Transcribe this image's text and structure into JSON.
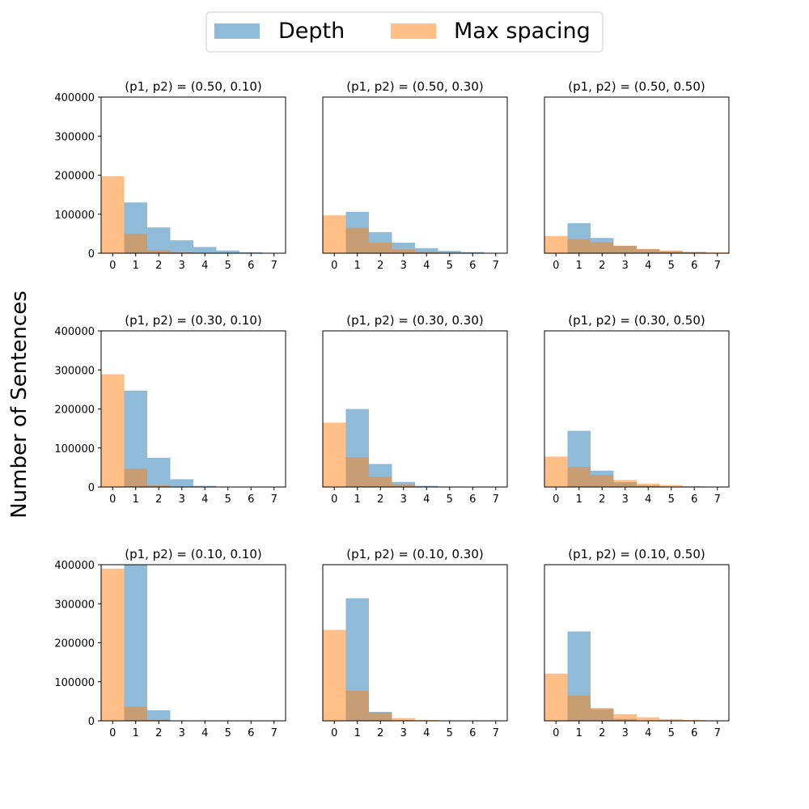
{
  "chart_data": {
    "type": "bar",
    "layout_grid": "3x3",
    "ylabel": "Number of Sentences",
    "ylim": [
      0,
      400000
    ],
    "yticks": [
      0,
      100000,
      200000,
      300000,
      400000
    ],
    "categories": [
      "0",
      "1",
      "2",
      "3",
      "4",
      "5",
      "6",
      "7"
    ],
    "legend": {
      "placement": "top-center",
      "entries": [
        {
          "name": "Depth",
          "color": "#1f77b4",
          "alpha": 0.5
        },
        {
          "name": "Max spacing",
          "color": "#ff7f0e",
          "alpha": 0.5
        }
      ]
    },
    "panels": [
      {
        "title": "(p1, p2) = (0.50, 0.10)",
        "series": [
          {
            "name": "Depth",
            "values": [
              0,
              130000,
              66000,
              33000,
              16000,
              7000,
              2500,
              1000
            ]
          },
          {
            "name": "Max spacing",
            "values": [
              197000,
              50000,
              8000,
              2000,
              500,
              200,
              0,
              0
            ]
          }
        ]
      },
      {
        "title": "(p1, p2) = (0.50, 0.30)",
        "series": [
          {
            "name": "Depth",
            "values": [
              0,
              106000,
              54000,
              27000,
              13000,
              6000,
              3000,
              1000
            ]
          },
          {
            "name": "Max spacing",
            "values": [
              97000,
              64000,
              27000,
              10000,
              4000,
              1500,
              500,
              200
            ]
          }
        ]
      },
      {
        "title": "(p1, p2) = (0.50, 0.50)",
        "series": [
          {
            "name": "Depth",
            "values": [
              0,
              77000,
              39000,
              19000,
              10000,
              5000,
              2500,
              1000
            ]
          },
          {
            "name": "Max spacing",
            "values": [
              44000,
              36000,
              28000,
              19000,
              11000,
              7000,
              4000,
              2000
            ]
          }
        ]
      },
      {
        "title": "(p1, p2) = (0.30, 0.10)",
        "series": [
          {
            "name": "Depth",
            "values": [
              0,
              247000,
              75000,
              20000,
              3000,
              500,
              100,
              0
            ]
          },
          {
            "name": "Max spacing",
            "values": [
              289000,
              47000,
              4000,
              500,
              0,
              0,
              0,
              0
            ]
          }
        ]
      },
      {
        "title": "(p1, p2) = (0.30, 0.30)",
        "series": [
          {
            "name": "Depth",
            "values": [
              0,
              200000,
              59000,
              13000,
              3000,
              700,
              100,
              0
            ]
          },
          {
            "name": "Max spacing",
            "values": [
              165000,
              76000,
              26000,
              7000,
              2000,
              500,
              100,
              0
            ]
          }
        ]
      },
      {
        "title": "(p1, p2) = (0.30, 0.50)",
        "series": [
          {
            "name": "Depth",
            "values": [
              0,
              144000,
              42000,
              12000,
              4000,
              1000,
              300,
              100
            ]
          },
          {
            "name": "Max spacing",
            "values": [
              78000,
              51000,
              31000,
              18000,
              9000,
              5000,
              2000,
              1000
            ]
          }
        ]
      },
      {
        "title": "(p1, p2) = (0.10, 0.10)",
        "series": [
          {
            "name": "Depth",
            "values": [
              0,
              400000,
              27000,
              500,
              0,
              0,
              0,
              0
            ]
          },
          {
            "name": "Max spacing",
            "values": [
              390000,
              36000,
              2000,
              0,
              0,
              0,
              0,
              0
            ]
          }
        ]
      },
      {
        "title": "(p1, p2) = (0.10, 0.30)",
        "series": [
          {
            "name": "Depth",
            "values": [
              0,
              314000,
              23000,
              1500,
              200,
              0,
              0,
              0
            ]
          },
          {
            "name": "Max spacing",
            "values": [
              233000,
              77000,
              21000,
              7000,
              2000,
              500,
              100,
              0
            ]
          }
        ]
      },
      {
        "title": "(p1, p2) = (0.10, 0.50)",
        "series": [
          {
            "name": "Depth",
            "values": [
              0,
              229000,
              30000,
              5000,
              1000,
              200,
              0,
              0
            ]
          },
          {
            "name": "Max spacing",
            "values": [
              121000,
              65000,
              33000,
              17000,
              9000,
              4500,
              2000,
              1000
            ]
          }
        ]
      }
    ]
  }
}
